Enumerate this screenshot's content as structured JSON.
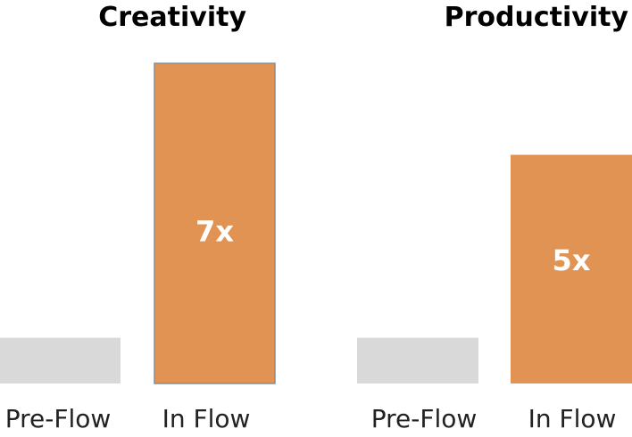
{
  "chart_data": [
    {
      "type": "bar",
      "title": "Creativity",
      "categories": [
        "Pre-Flow",
        "In Flow"
      ],
      "values": [
        1,
        7
      ],
      "data_labels": [
        "",
        "7x"
      ],
      "ylim": [
        0,
        7
      ],
      "colors": [
        "#d9d9d9",
        "#e09352"
      ],
      "label_color": "#ffffff",
      "grid": false,
      "legend": "none"
    },
    {
      "type": "bar",
      "title": "Productivity",
      "categories": [
        "Pre-Flow",
        "In Flow"
      ],
      "values": [
        1,
        5
      ],
      "data_labels": [
        "",
        "5x"
      ],
      "ylim": [
        0,
        7
      ],
      "colors": [
        "#d9d9d9",
        "#e09352"
      ],
      "label_color": "#ffffff",
      "grid": false,
      "legend": "none"
    }
  ]
}
